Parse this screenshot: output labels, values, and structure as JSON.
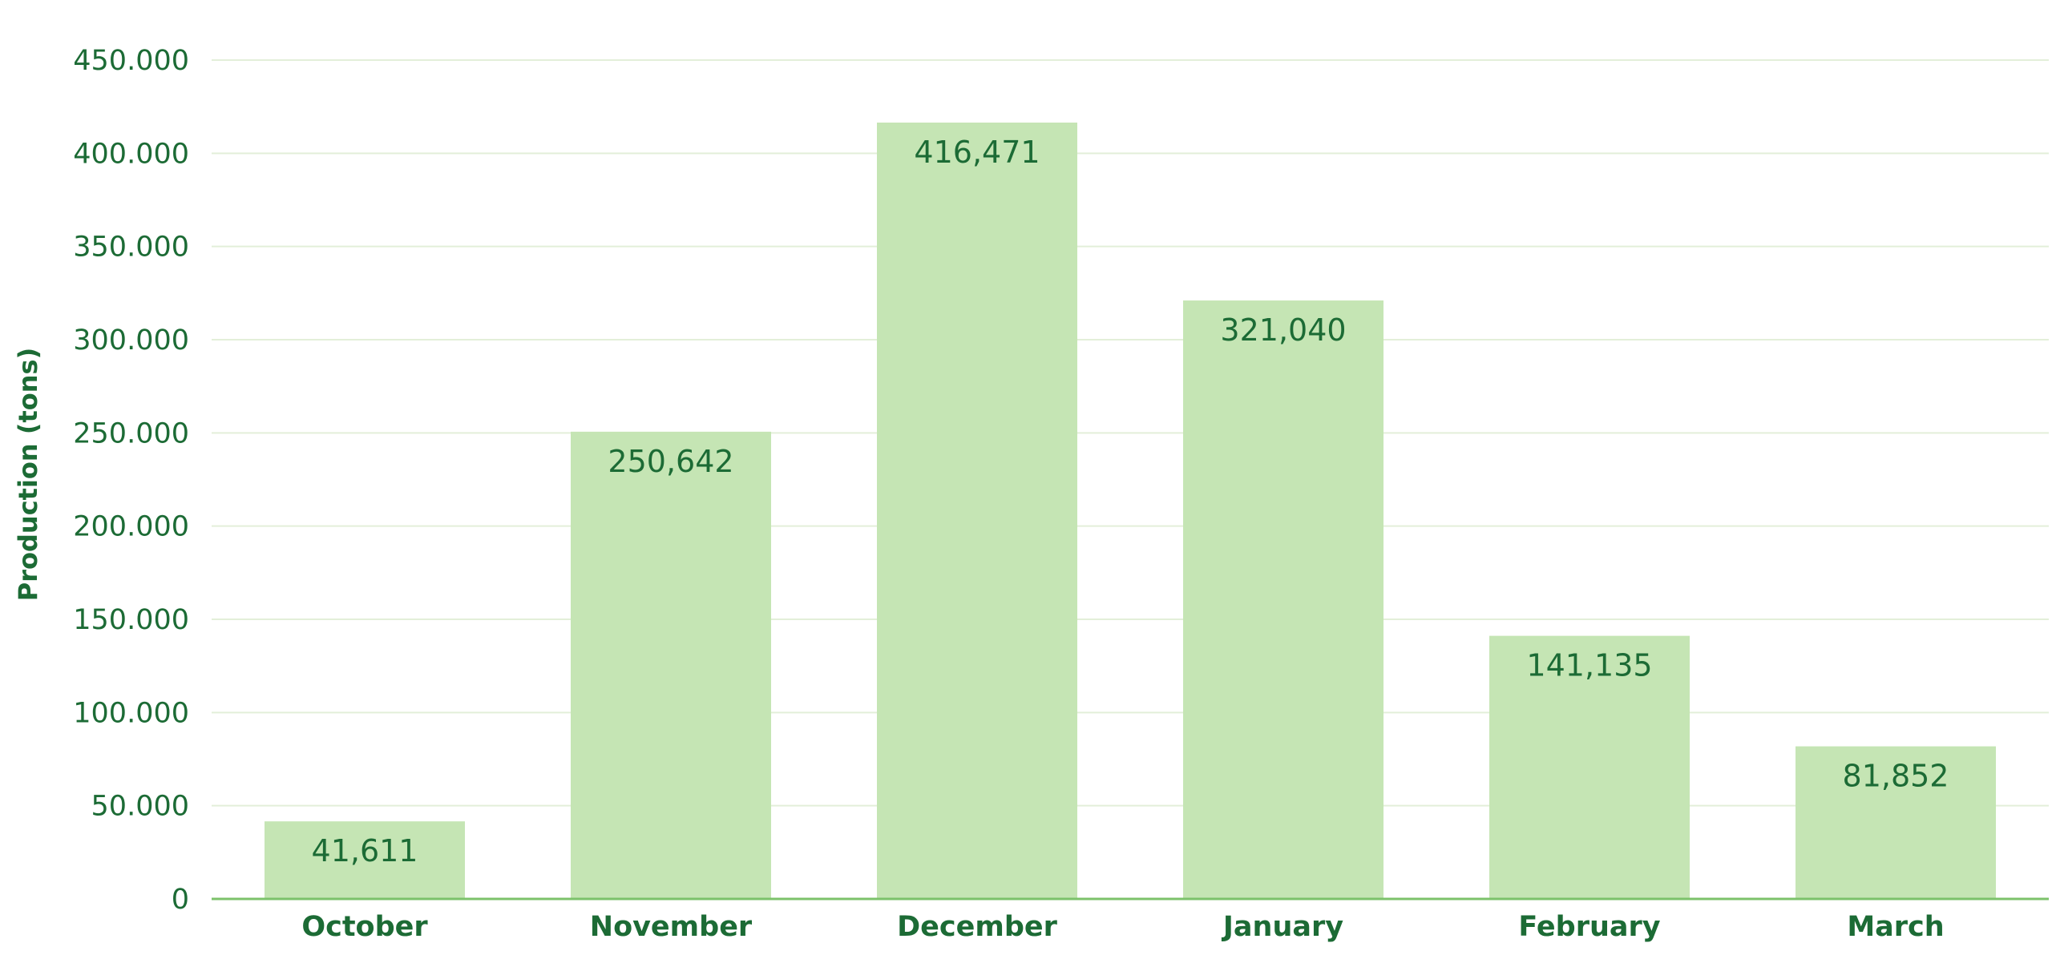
{
  "chart_data": {
    "type": "bar",
    "title": "",
    "xlabel": "",
    "ylabel": "Production (tons)",
    "categories": [
      "October",
      "November",
      "December",
      "January",
      "February",
      "March"
    ],
    "values": [
      41611,
      250642,
      416471,
      321040,
      141135,
      81852
    ],
    "data_labels": [
      "41,611",
      "250,642",
      "416,471",
      "321,040",
      "141,135",
      "81,852"
    ],
    "ylim": [
      0,
      450000
    ],
    "y_ticks": [
      0,
      50000,
      100000,
      150000,
      200000,
      250000,
      300000,
      350000,
      400000,
      450000
    ],
    "y_tick_labels": [
      "0",
      "50.000",
      "100.000",
      "150.000",
      "200.000",
      "250.000",
      "300.000",
      "350.000",
      "400.000",
      "450.000"
    ],
    "grid": true,
    "legend": "none",
    "colors": {
      "bar": "#c5e5b4",
      "grid": "#e3efd9",
      "baseline": "#7cc26b",
      "text": "#1c6b35"
    }
  }
}
